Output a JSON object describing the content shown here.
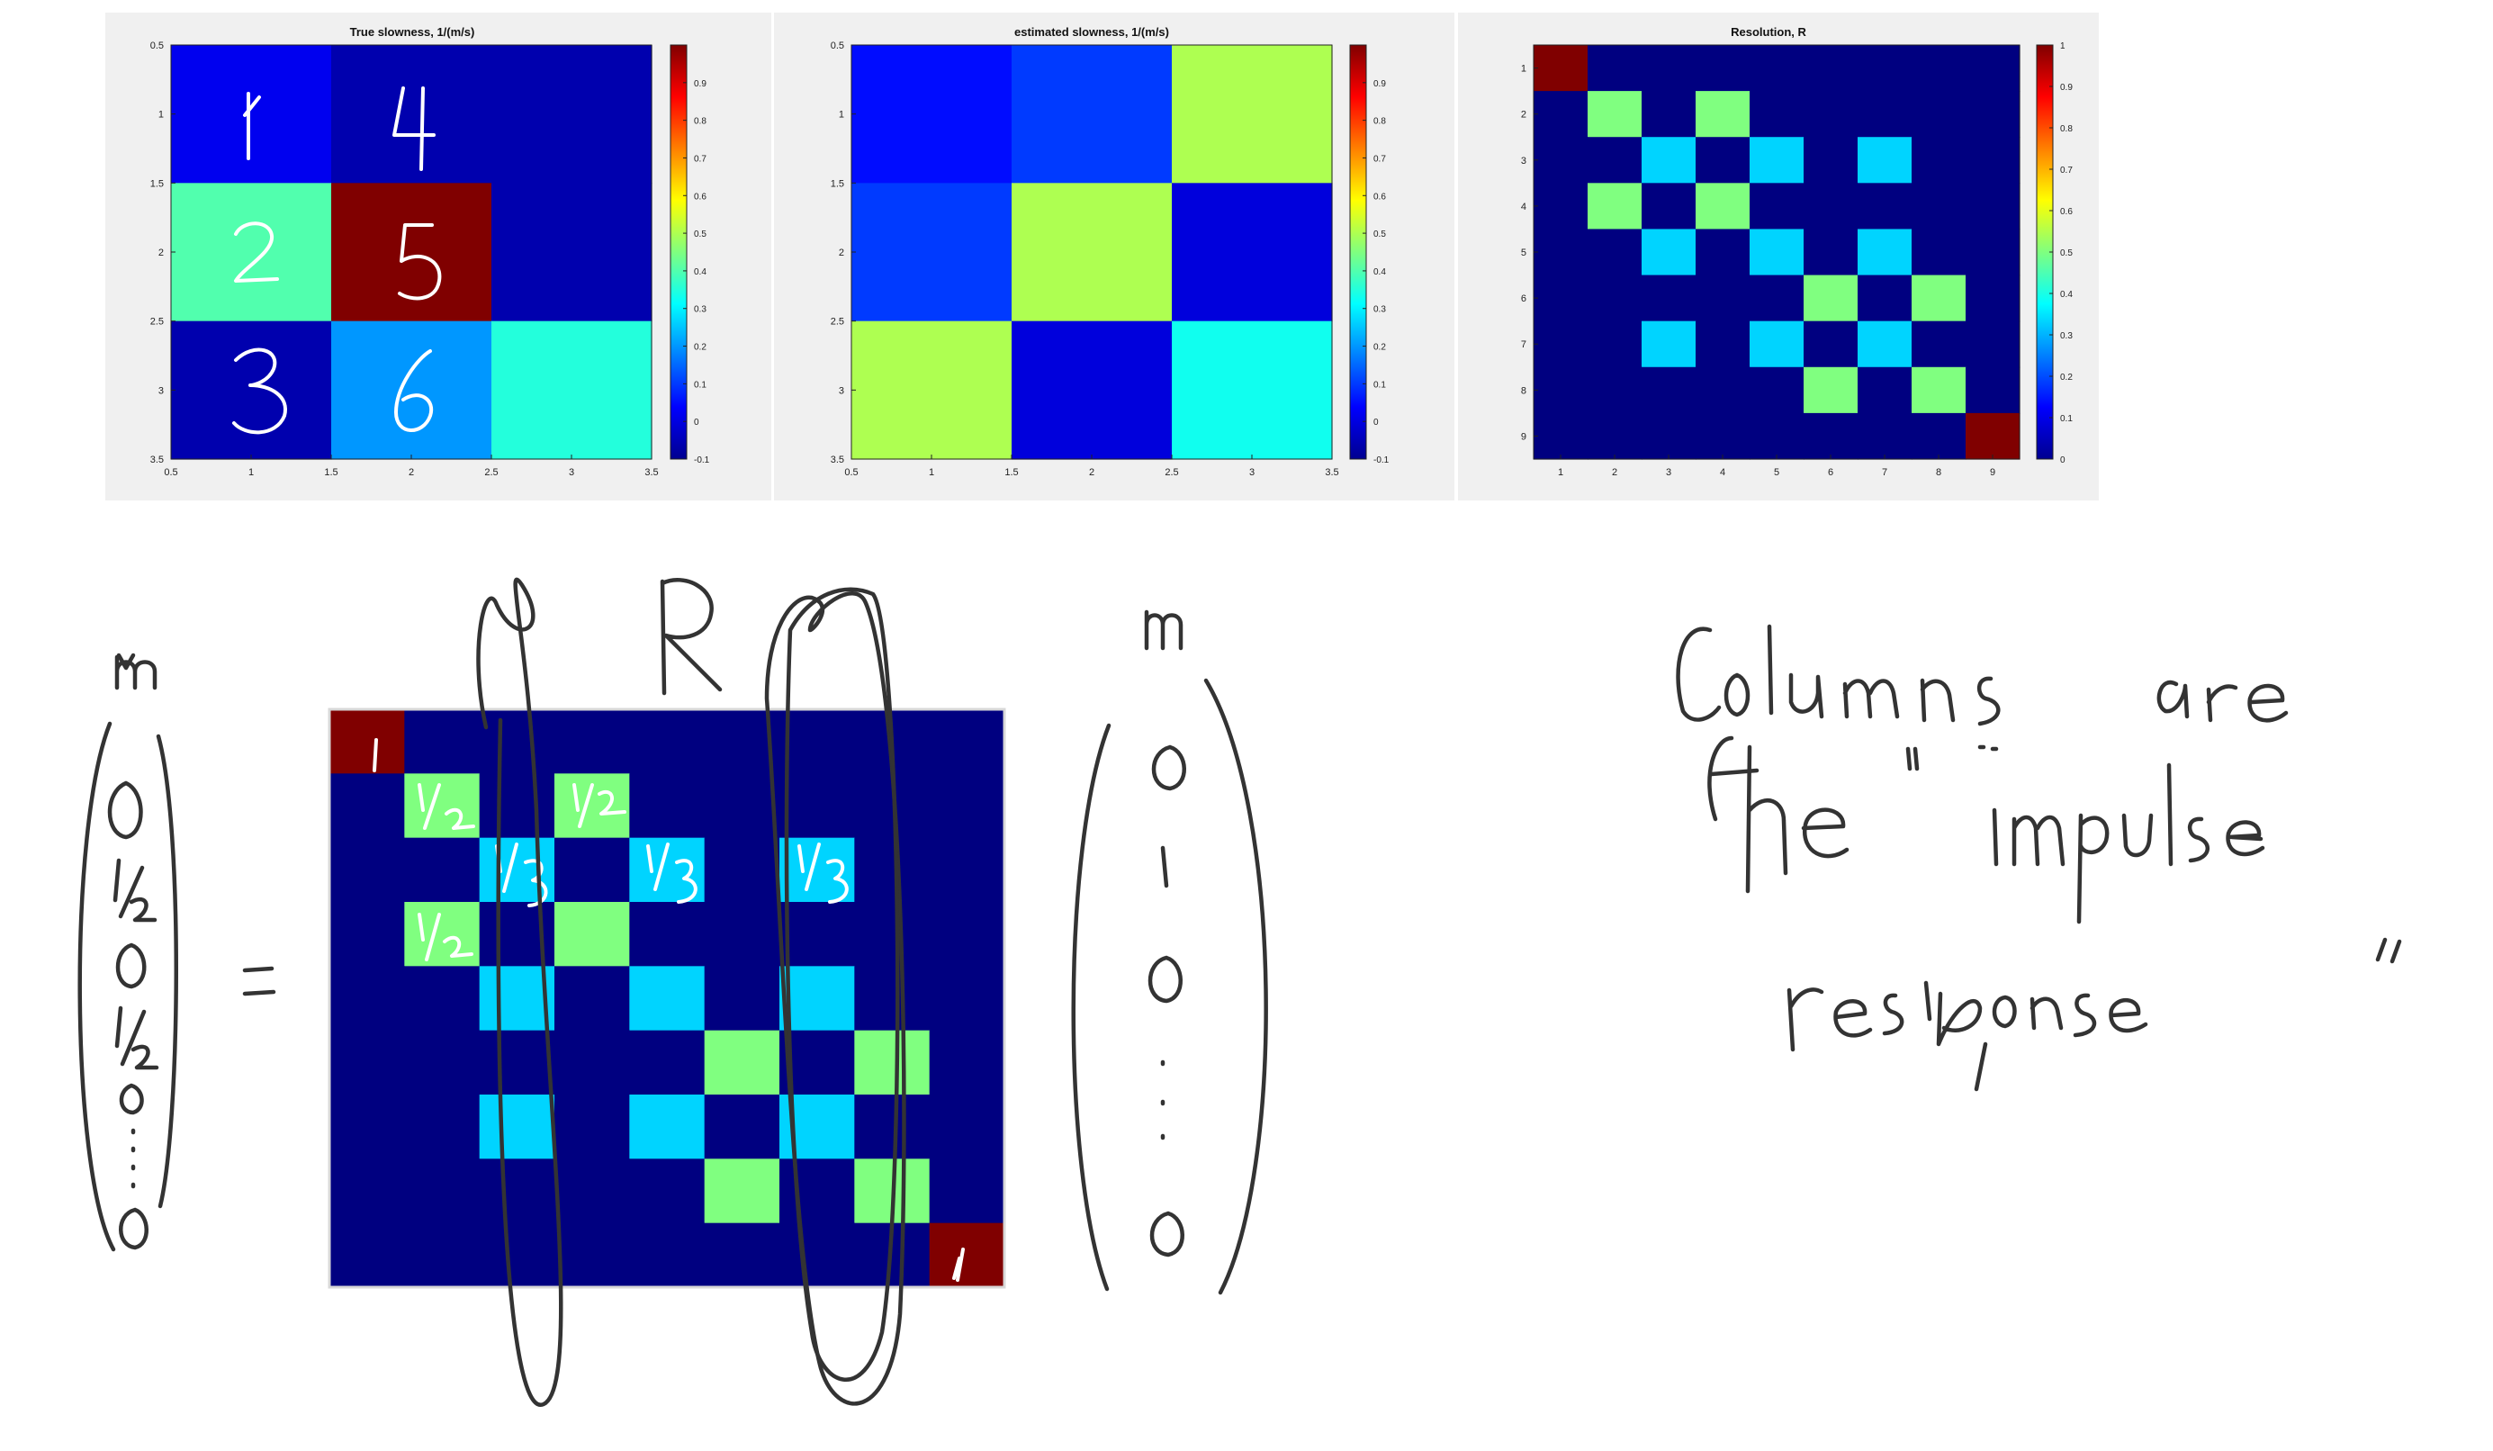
{
  "colors": {
    "panel_bg": "#f0f0f0",
    "ink": "#333333"
  },
  "chart_data": [
    {
      "type": "heatmap",
      "title": "True slowness, 1/(m/s)",
      "x": [
        1,
        2,
        3
      ],
      "y": [
        1,
        2,
        3
      ],
      "values": [
        [
          0.02,
          -0.05,
          -0.05
        ],
        [
          0.4,
          1.0,
          -0.05
        ],
        [
          -0.05,
          0.2,
          0.35
        ]
      ],
      "xlim": [
        0.5,
        3.5
      ],
      "ylim": [
        0.5,
        3.5
      ],
      "xticks": [
        "0.5",
        "1",
        "1.5",
        "2",
        "2.5",
        "3",
        "3.5"
      ],
      "yticks": [
        "0.5",
        "1",
        "1.5",
        "2",
        "2.5",
        "3",
        "3.5"
      ],
      "colorbar": {
        "range": [
          -0.1,
          1.0
        ],
        "ticks": [
          "-0.1",
          "0",
          "0.1",
          "0.2",
          "0.3",
          "0.4",
          "0.5",
          "0.6",
          "0.7",
          "0.8",
          "0.9"
        ]
      },
      "cell_labels": [
        "1",
        "2",
        "3",
        "4",
        "5",
        "6"
      ]
    },
    {
      "type": "heatmap",
      "title": "estimated slowness, 1/(m/s)",
      "x": [
        1,
        2,
        3
      ],
      "y": [
        1,
        2,
        3
      ],
      "values": [
        [
          0.05,
          0.1,
          0.5
        ],
        [
          0.1,
          0.5,
          0.0
        ],
        [
          0.5,
          0.0,
          0.33
        ]
      ],
      "xlim": [
        0.5,
        3.5
      ],
      "ylim": [
        0.5,
        3.5
      ],
      "xticks": [
        "0.5",
        "1",
        "1.5",
        "2",
        "2.5",
        "3",
        "3.5"
      ],
      "yticks": [
        "0.5",
        "1",
        "1.5",
        "2",
        "2.5",
        "3",
        "3.5"
      ],
      "colorbar": {
        "range": [
          -0.1,
          1.0
        ],
        "ticks": [
          "-0.1",
          "0",
          "0.1",
          "0.2",
          "0.3",
          "0.4",
          "0.5",
          "0.6",
          "0.7",
          "0.8",
          "0.9"
        ]
      }
    },
    {
      "type": "heatmap",
      "title": "Resolution, R",
      "x": [
        1,
        2,
        3,
        4,
        5,
        6,
        7,
        8,
        9
      ],
      "y": [
        1,
        2,
        3,
        4,
        5,
        6,
        7,
        8,
        9
      ],
      "values": [
        [
          1,
          0,
          0,
          0,
          0,
          0,
          0,
          0,
          0
        ],
        [
          0,
          0.5,
          0,
          0.5,
          0,
          0,
          0,
          0,
          0
        ],
        [
          0,
          0,
          0.333,
          0,
          0.333,
          0,
          0.333,
          0,
          0
        ],
        [
          0,
          0.5,
          0,
          0.5,
          0,
          0,
          0,
          0,
          0
        ],
        [
          0,
          0,
          0.333,
          0,
          0.333,
          0,
          0.333,
          0,
          0
        ],
        [
          0,
          0,
          0,
          0,
          0,
          0.5,
          0,
          0.5,
          0
        ],
        [
          0,
          0,
          0.333,
          0,
          0.333,
          0,
          0.333,
          0,
          0
        ],
        [
          0,
          0,
          0,
          0,
          0,
          0.5,
          0,
          0.5,
          0
        ],
        [
          0,
          0,
          0,
          0,
          0,
          0,
          0,
          0,
          1
        ]
      ],
      "xticks": [
        "1",
        "2",
        "3",
        "4",
        "5",
        "6",
        "7",
        "8",
        "9"
      ],
      "yticks": [
        "1",
        "2",
        "3",
        "4",
        "5",
        "6",
        "7",
        "8",
        "9"
      ],
      "colorbar": {
        "range": [
          0,
          1.0
        ],
        "ticks": [
          "0",
          "0.1",
          "0.2",
          "0.3",
          "0.4",
          "0.5",
          "0.6",
          "0.7",
          "0.8",
          "0.9",
          "1"
        ]
      }
    },
    {
      "type": "heatmap",
      "values": [
        [
          1,
          0,
          0,
          0,
          0,
          0,
          0,
          0,
          0
        ],
        [
          0,
          0.5,
          0,
          0.5,
          0,
          0,
          0,
          0,
          0
        ],
        [
          0,
          0,
          0.333,
          0,
          0.333,
          0,
          0.333,
          0,
          0
        ],
        [
          0,
          0.5,
          0,
          0.5,
          0,
          0,
          0,
          0,
          0
        ],
        [
          0,
          0,
          0.333,
          0,
          0.333,
          0,
          0.333,
          0,
          0
        ],
        [
          0,
          0,
          0,
          0,
          0,
          0.5,
          0,
          0.5,
          0
        ],
        [
          0,
          0,
          0.333,
          0,
          0.333,
          0,
          0.333,
          0,
          0
        ],
        [
          0,
          0,
          0,
          0,
          0,
          0.5,
          0,
          0.5,
          0
        ],
        [
          0,
          0,
          0,
          0,
          0,
          0,
          0,
          0,
          1
        ]
      ],
      "colorbar": {
        "range": [
          0,
          1.0
        ]
      }
    }
  ],
  "annotations": {
    "mhat_label": "m̂",
    "m_label": "m",
    "r_label": "R",
    "equals": "=",
    "mhat_vector": [
      "0",
      "1/2",
      "0",
      "1/2",
      "0",
      "⋮",
      "0"
    ],
    "m_vector": [
      "0",
      "1",
      "0",
      "⋮",
      "0"
    ],
    "matrix_cell_notes": [
      "1",
      "1/2",
      "1/2",
      "1/3",
      "1/3",
      "1/3",
      "1/2",
      "1"
    ],
    "note_lines": [
      "Columns are",
      "the \"impulse",
      "response\""
    ]
  }
}
